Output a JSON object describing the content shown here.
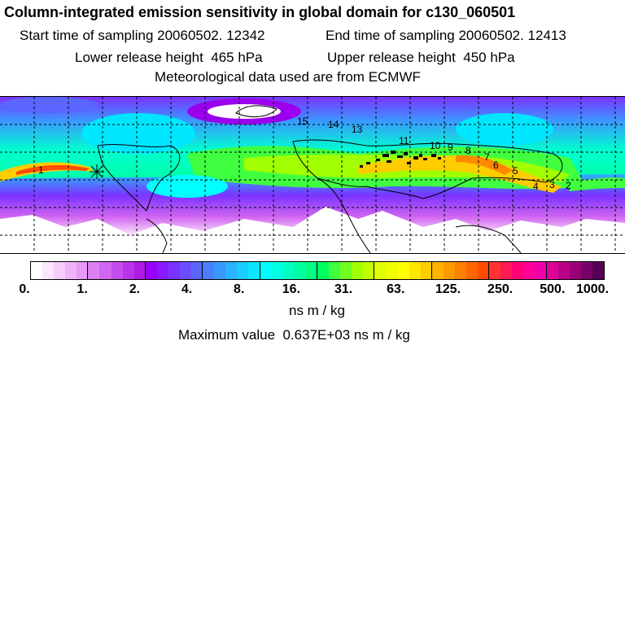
{
  "header": {
    "title": "Column-integrated emission sensitivity in global domain for c130_060501",
    "start_time": "Start time of sampling 20060502. 12342",
    "end_time": "End time of sampling 20060502. 12413",
    "lower_release": "Lower release height  465 hPa",
    "upper_release": "Upper release height  450 hPa",
    "met_data": "Meteorological data used are from ECMWF"
  },
  "map": {
    "plume_labels": [
      {
        "text": "1"
      },
      {
        "text": "2"
      },
      {
        "text": "3"
      },
      {
        "text": "4"
      },
      {
        "text": "5"
      },
      {
        "text": "6"
      },
      {
        "text": "7"
      },
      {
        "text": "8"
      },
      {
        "text": "9"
      },
      {
        "text": "10"
      },
      {
        "text": "11"
      },
      {
        "text": "13"
      },
      {
        "text": "14"
      },
      {
        "text": "15"
      }
    ]
  },
  "colorbar": {
    "segment_colors": [
      "#ffffff",
      "#fbe6fd",
      "#f5ccfb",
      "#efb3f8",
      "#e699f6",
      "#dc80f3",
      "#d166f1",
      "#c64ded",
      "#ba33e9",
      "#ae1ae6",
      "#9900ff",
      "#8a1aff",
      "#7a33ff",
      "#6a4dff",
      "#5a66ff",
      "#4a80ff",
      "#3a99ff",
      "#2ab3ff",
      "#1accff",
      "#0ae6ff",
      "#00ffff",
      "#00ffe0",
      "#00ffc0",
      "#00ffa0",
      "#00ff80",
      "#00ff60",
      "#40ff40",
      "#70ff20",
      "#a0ff00",
      "#c0ff00",
      "#e0ff00",
      "#f0ff00",
      "#ffff00",
      "#ffe600",
      "#ffcc00",
      "#ffb300",
      "#ff9900",
      "#ff7f00",
      "#ff6600",
      "#ff4c00",
      "#ff3333",
      "#ff1a55",
      "#ff0077",
      "#ff0099",
      "#ee00aa",
      "#dd0099",
      "#bb0088",
      "#990077",
      "#770066",
      "#550055"
    ],
    "tick_labels": [
      "0.",
      "1.",
      "2.",
      "4.",
      "8.",
      "16.",
      "31.",
      "63.",
      "125.",
      "250.",
      "500.",
      "1000."
    ],
    "units": "ns m / kg",
    "max_value": "Maximum value  0.637E+03 ns m / kg"
  }
}
